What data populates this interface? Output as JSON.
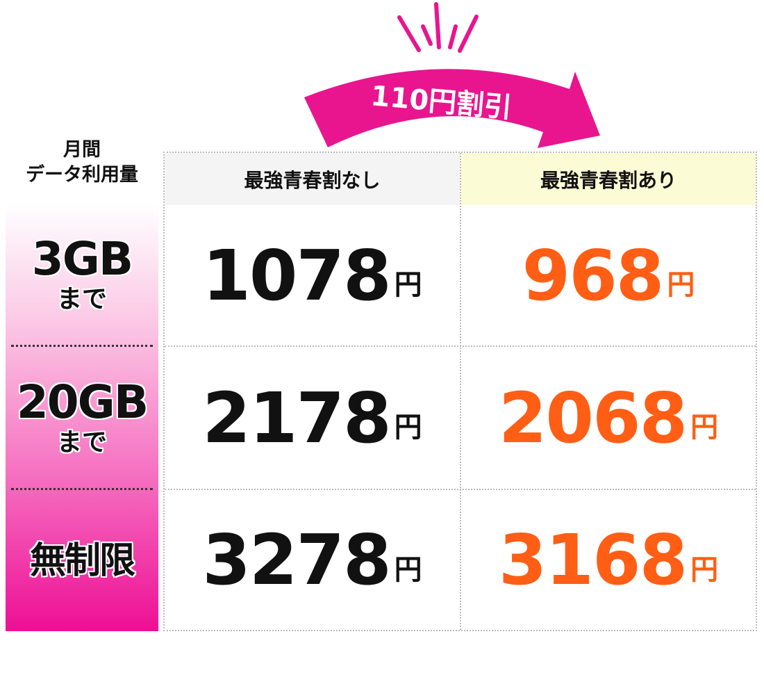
{
  "discount_arrow": {
    "label": "110円割引",
    "color": "#e8158f"
  },
  "row_header": {
    "line1": "月間",
    "line2": "データ利用量"
  },
  "columns": [
    {
      "label": "最強青春割なし",
      "bg": "#f4f4f4"
    },
    {
      "label": "最強青春割あり",
      "bg": "#fbfbd6"
    }
  ],
  "colors": {
    "price_regular": "#111111",
    "price_discount": "#ff5e14"
  },
  "rows": [
    {
      "plan": "3GB",
      "suffix": "まで",
      "regular": "1078",
      "discount": "968",
      "unit": "円"
    },
    {
      "plan": "20GB",
      "suffix": "まで",
      "regular": "2178",
      "discount": "2068",
      "unit": "円"
    },
    {
      "plan": "無制限",
      "suffix": "",
      "regular": "3278",
      "discount": "3168",
      "unit": "円"
    }
  ]
}
